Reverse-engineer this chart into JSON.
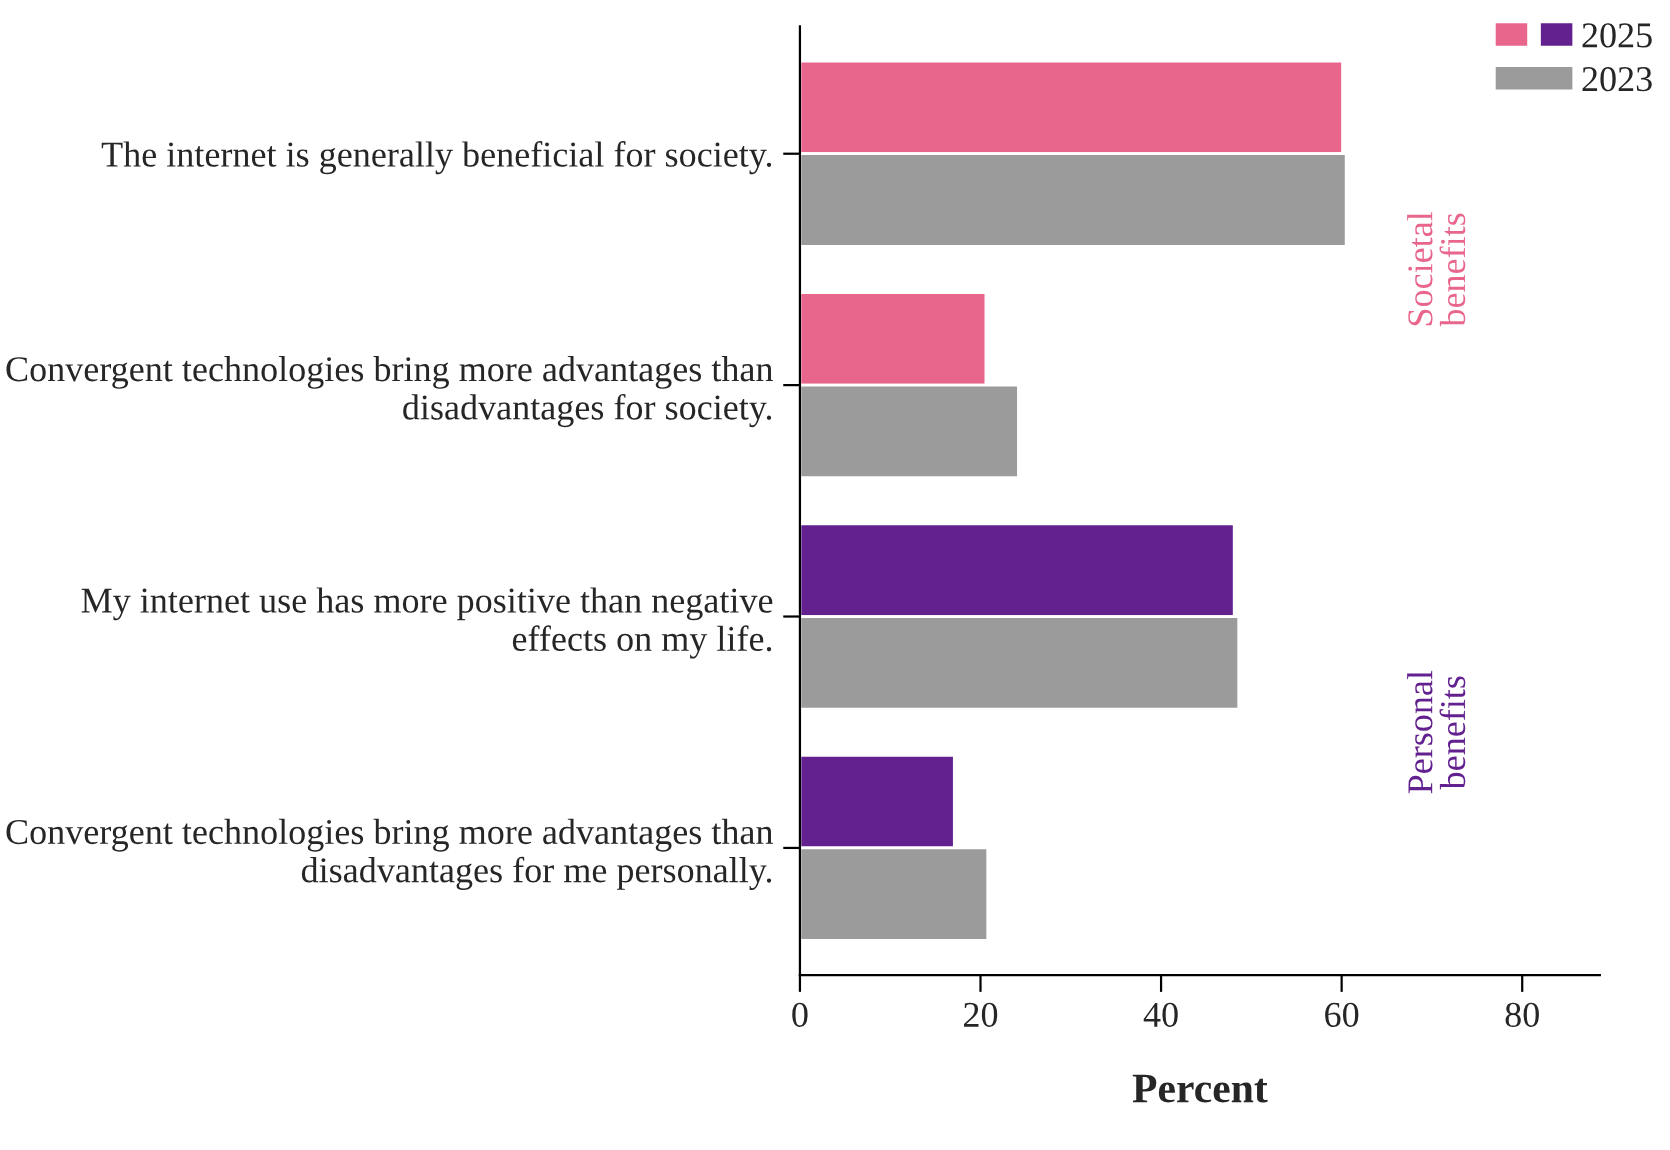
{
  "chart_data": {
    "type": "bar",
    "orientation": "horizontal",
    "xlabel": "Percent",
    "categories": [
      "The internet is generally beneficial for society.",
      "Convergent technologies bring more advantages than disadvantages for society.",
      "My internet use has more positive than negative effects on my life.",
      "Convergent technologies bring more advantages than disadvantages for me personally."
    ],
    "series": [
      {
        "name": "2025",
        "colors": [
          "#e8668c",
          "#e8668c",
          "#63218f",
          "#63218f"
        ],
        "values": [
          60.1,
          20.6,
          48.1,
          17.1
        ]
      },
      {
        "name": "2023",
        "color": "#9b9b9b",
        "values": [
          60.5,
          24.2,
          48.6,
          20.8
        ]
      }
    ],
    "xlim": [
      0,
      88.6
    ],
    "xticks": [
      0,
      20,
      40,
      60,
      80
    ],
    "annotations": [
      "Societal\nbenefits",
      "Personal\nbenefits"
    ],
    "grid": false,
    "legend": "top right"
  }
}
